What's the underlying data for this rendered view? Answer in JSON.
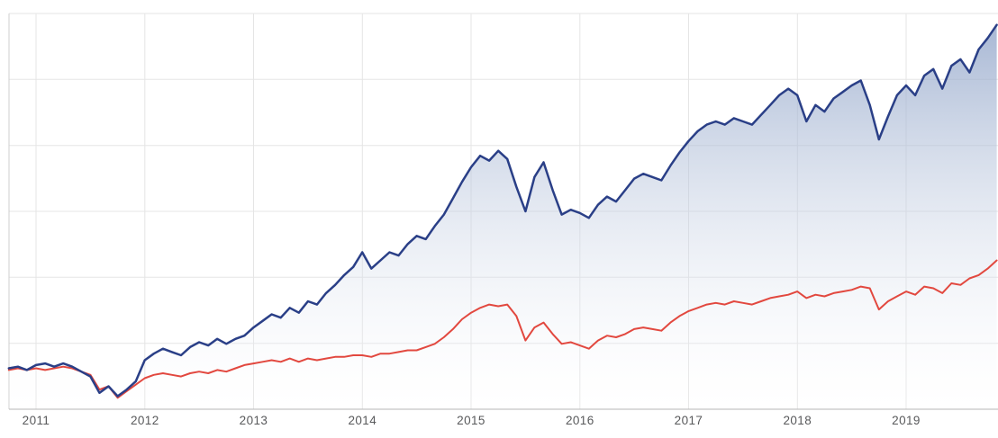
{
  "chart": {
    "title": "",
    "x_axis_labels": [
      "2011",
      "2012",
      "2013",
      "2014",
      "2015",
      "2016",
      "2017",
      "2018",
      "2019"
    ],
    "colors": {
      "primary_line": "#2a3f87",
      "primary_area_top": "#8ba0c6",
      "primary_area_bottom": "#ffffff",
      "secondary_line": "#e2483f",
      "grid_line": "#e5e5e5",
      "axis_line": "#b7b7b7",
      "left_axis_line": "#cfcfcf",
      "tick_label": "#58595b",
      "background": "#ffffff"
    }
  },
  "chart_data": {
    "type": "area",
    "title": "",
    "xlabel": "",
    "ylabel": "",
    "legend": "none",
    "grid": true,
    "x_start_year": 2010.75,
    "x_interval_years": 0.0833333,
    "x_tick_years": [
      2011,
      2012,
      2013,
      2014,
      2015,
      2016,
      2017,
      2018,
      2019
    ],
    "xlim": [
      2010.75,
      2019.92
    ],
    "ylim": [
      76,
      318
    ],
    "y_axis_labels_visible": false,
    "series": [
      {
        "name": "navy-area-series",
        "style": "line-with-gradient-area-fill",
        "values": [
          101,
          102,
          100,
          103,
          104,
          102,
          104,
          102,
          99,
          96,
          86,
          90,
          84,
          88,
          93,
          106,
          110,
          113,
          111,
          109,
          114,
          117,
          115,
          119,
          116,
          119,
          121,
          126,
          130,
          134,
          132,
          138,
          135,
          142,
          140,
          147,
          152,
          158,
          163,
          172,
          162,
          167,
          172,
          170,
          177,
          182,
          180,
          188,
          195,
          205,
          215,
          224,
          231,
          228,
          234,
          229,
          212,
          197,
          218,
          227,
          210,
          195,
          198,
          196,
          193,
          201,
          206,
          203,
          210,
          217,
          220,
          218,
          216,
          225,
          233,
          240,
          246,
          250,
          252,
          250,
          254,
          252,
          250,
          256,
          262,
          268,
          272,
          268,
          252,
          262,
          258,
          266,
          270,
          274,
          277,
          262,
          241,
          255,
          268,
          274,
          268,
          280,
          284,
          272,
          286,
          290,
          282,
          296,
          303,
          311
        ]
      },
      {
        "name": "red-line-series",
        "style": "plain-line",
        "values": [
          100,
          101,
          100,
          101,
          100,
          101,
          102,
          101,
          99,
          97,
          88,
          90,
          83,
          87,
          91,
          95,
          97,
          98,
          97,
          96,
          98,
          99,
          98,
          100,
          99,
          101,
          103,
          104,
          105,
          106,
          105,
          107,
          105,
          107,
          106,
          107,
          108,
          108,
          109,
          109,
          108,
          110,
          110,
          111,
          112,
          112,
          114,
          116,
          120,
          125,
          131,
          135,
          138,
          140,
          139,
          140,
          133,
          118,
          126,
          129,
          122,
          116,
          117,
          115,
          113,
          118,
          121,
          120,
          122,
          125,
          126,
          125,
          124,
          129,
          133,
          136,
          138,
          140,
          141,
          140,
          142,
          141,
          140,
          142,
          144,
          145,
          146,
          148,
          144,
          146,
          145,
          147,
          148,
          149,
          151,
          150,
          137,
          142,
          145,
          148,
          146,
          151,
          150,
          147,
          153,
          152,
          156,
          158,
          162,
          167
        ]
      }
    ]
  }
}
